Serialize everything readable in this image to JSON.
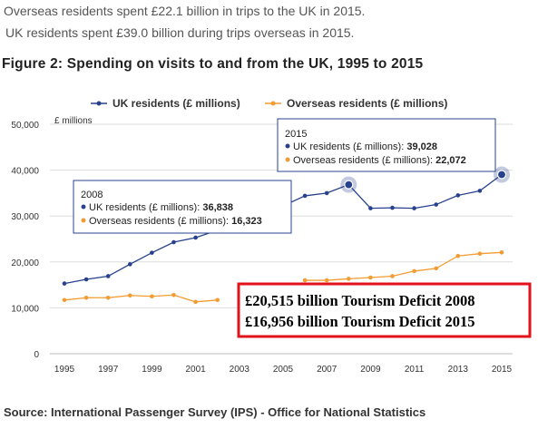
{
  "intro": {
    "line1": "Overseas residents spent £22.1 billion in trips to the UK in 2015.",
    "line2": "UK residents spent £39.0 billion during trips overseas in 2015."
  },
  "figure_title": "Figure 2: Spending on visits to and from the UK, 1995 to 2015",
  "source": "Source: International Passenger Survey (IPS) - Office for National Statistics",
  "colors": {
    "uk": "#27418f",
    "overseas": "#f39c33",
    "grid": "#dddddd",
    "annotation_border": "#e2121b"
  },
  "chart_data": {
    "type": "line",
    "ylabel": "£ millions",
    "ylim": [
      0,
      50000
    ],
    "yticks": [
      0,
      10000,
      20000,
      30000,
      40000,
      50000
    ],
    "ytick_labels": [
      "0",
      "10,000",
      "20,000",
      "30,000",
      "40,000",
      "50,000"
    ],
    "xlim": [
      1995,
      2015
    ],
    "xticks": [
      "1995",
      "1997",
      "1999",
      "2001",
      "2003",
      "2005",
      "2007",
      "2009",
      "2011",
      "2013",
      "2015"
    ],
    "grid": true,
    "legend_position": "top",
    "x": [
      1995,
      1996,
      1997,
      1998,
      1999,
      2000,
      2001,
      2002,
      2003,
      2004,
      2005,
      2006,
      2007,
      2008,
      2009,
      2010,
      2011,
      2012,
      2013,
      2014,
      2015
    ],
    "series": [
      {
        "name": "UK residents (£ millions)",
        "color": "#27418f",
        "values": [
          15300,
          16200,
          16900,
          19500,
          22000,
          24300,
          25300,
          26900,
          28500,
          30300,
          32200,
          34400,
          35000,
          36838,
          31700,
          31800,
          31700,
          32500,
          34500,
          35500,
          39028
        ]
      },
      {
        "name": "Overseas residents (£ millions)",
        "color": "#f39c33",
        "values": [
          11700,
          12200,
          12200,
          12700,
          12500,
          12800,
          11300,
          11700,
          11900,
          13100,
          14200,
          16000,
          16000,
          16323,
          16600,
          16900,
          18000,
          18600,
          21300,
          21800,
          22072
        ]
      }
    ],
    "tooltips": [
      {
        "title": "2008",
        "uk_label": "UK residents (£ millions): ",
        "uk_value": "36,838",
        "os_label": "Overseas residents (£ millions): ",
        "os_value": "16,323"
      },
      {
        "title": "2015",
        "uk_label": "UK residents (£ millions): ",
        "uk_value": "39,028",
        "os_label": "Overseas residents (£ millions): ",
        "os_value": "22,072"
      }
    ],
    "annotation": [
      "£20,515 billion Tourism Deficit 2008",
      "£16,956 billion Tourism Deficit 2015"
    ]
  }
}
